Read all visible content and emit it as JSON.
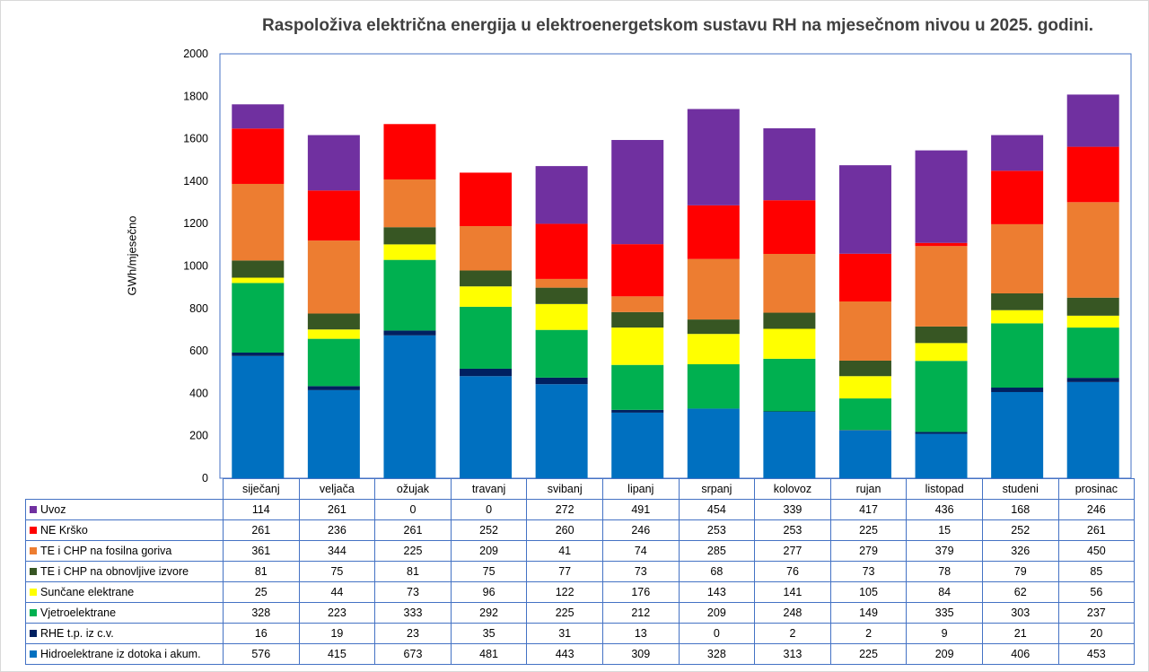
{
  "chart_data": {
    "type": "bar",
    "stacked": true,
    "title": "Raspoloživa električna energija u elektroenergetskom sustavu RH na mjesečnom nivou u 2025. godini.",
    "ylabel": "GWh/mjesečno",
    "xlabel": "",
    "ylim": [
      0,
      2000
    ],
    "yticks": [
      "0",
      "200",
      "400",
      "600",
      "800",
      "1000",
      "1200",
      "1400",
      "1600",
      "1800",
      "2000"
    ],
    "grid": false,
    "legend": "data-table-below",
    "categories": [
      "siječanj",
      "veljača",
      "ožujak",
      "travanj",
      "svibanj",
      "lipanj",
      "srpanj",
      "kolovoz",
      "rujan",
      "listopad",
      "studeni",
      "prosinac"
    ],
    "series": [
      {
        "name": "Uvoz",
        "color": "#7030A0",
        "values": [
          114,
          261,
          0,
          0,
          272,
          491,
          454,
          339,
          417,
          436,
          168,
          246
        ]
      },
      {
        "name": "NE Krško",
        "color": "#FF0000",
        "values": [
          261,
          236,
          261,
          252,
          260,
          246,
          253,
          253,
          225,
          15,
          252,
          261
        ]
      },
      {
        "name": "TE i CHP na fosilna goriva",
        "color": "#ED7D31",
        "values": [
          361,
          344,
          225,
          209,
          41,
          74,
          285,
          277,
          279,
          379,
          326,
          450
        ]
      },
      {
        "name": "TE i CHP na obnovljive izvore",
        "color": "#375623",
        "values": [
          81,
          75,
          81,
          75,
          77,
          73,
          68,
          76,
          73,
          78,
          79,
          85
        ]
      },
      {
        "name": "Sunčane elektrane",
        "color": "#FFFF00",
        "values": [
          25,
          44,
          73,
          96,
          122,
          176,
          143,
          141,
          105,
          84,
          62,
          56
        ]
      },
      {
        "name": "Vjetroelektrane",
        "color": "#00B050",
        "values": [
          328,
          223,
          333,
          292,
          225,
          212,
          209,
          248,
          149,
          335,
          303,
          237
        ]
      },
      {
        "name": "RHE t.p. iz c.v.",
        "color": "#002060",
        "values": [
          16,
          19,
          23,
          35,
          31,
          13,
          0,
          2,
          2,
          9,
          21,
          20
        ]
      },
      {
        "name": "Hidroelektrane iz dotoka i akum.",
        "color": "#0070C0",
        "values": [
          576,
          415,
          673,
          481,
          443,
          309,
          328,
          313,
          225,
          209,
          406,
          453
        ]
      }
    ]
  }
}
